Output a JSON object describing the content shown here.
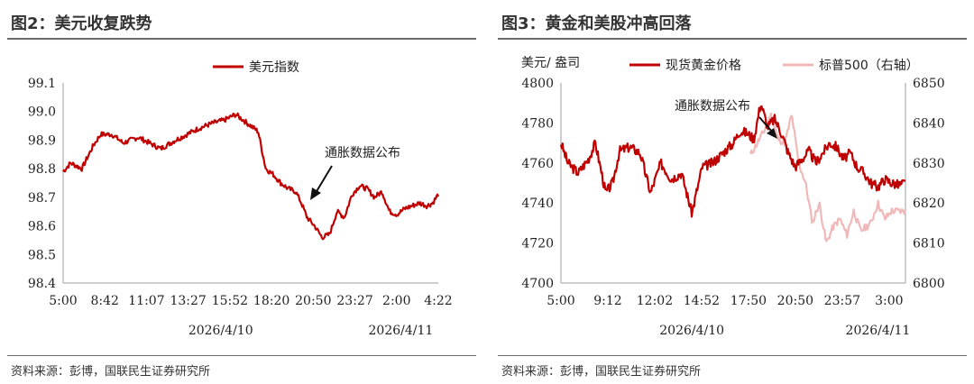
{
  "colors": {
    "primary_line": "#c00000",
    "secondary_line": "#f0b8b8",
    "axis": "#9e9e9e",
    "text": "#222222",
    "rule": "#6b6b6b"
  },
  "left": {
    "title": "图2：美元收复跌势",
    "source": "资料来源：彭博，国联民生证券研究所",
    "annotation": "通胀数据公布"
  },
  "right": {
    "title": "图3：黄金和美股冲高回落",
    "source": "资料来源：彭博，国联民生证券研究所",
    "annotation": "通胀数据公布",
    "y_unit": "美元/ 盎司"
  },
  "chart_data": [
    {
      "type": "line",
      "title": "图2：美元收复跌势",
      "ylim": [
        98.4,
        99.1
      ],
      "yticks": [
        "99.1",
        "99.0",
        "98.9",
        "98.8",
        "98.7",
        "98.6",
        "98.5",
        "98.4"
      ],
      "xticks": [
        "5:00",
        "8:42",
        "11:07",
        "13:27",
        "15:52",
        "18:20",
        "20:50",
        "23:27",
        "2:00",
        "4:22"
      ],
      "date_labels": [
        "2026/4/10",
        "2026/4/11"
      ],
      "legend": "top-center",
      "grid": false,
      "series": [
        {
          "name": "美元指数",
          "x": [
            0,
            0.02,
            0.05,
            0.08,
            0.1,
            0.13,
            0.16,
            0.2,
            0.23,
            0.26,
            0.3,
            0.33,
            0.36,
            0.4,
            0.43,
            0.46,
            0.5,
            0.52,
            0.54,
            0.56,
            0.58,
            0.6,
            0.62,
            0.635,
            0.65,
            0.67,
            0.69,
            0.71,
            0.73,
            0.75,
            0.77,
            0.79,
            0.81,
            0.83,
            0.85,
            0.87,
            0.89,
            0.91,
            0.93,
            0.95,
            0.97,
            0.985,
            1.0
          ],
          "values": [
            98.79,
            98.82,
            98.8,
            98.88,
            98.92,
            98.92,
            98.89,
            98.91,
            98.89,
            98.87,
            98.9,
            98.92,
            98.94,
            98.96,
            98.97,
            98.99,
            98.95,
            98.93,
            98.8,
            98.78,
            98.75,
            98.73,
            98.72,
            98.68,
            98.63,
            98.6,
            98.56,
            98.57,
            98.65,
            98.63,
            98.71,
            98.74,
            98.73,
            98.7,
            98.72,
            98.65,
            98.64,
            98.66,
            98.67,
            98.68,
            98.67,
            98.68,
            98.71
          ]
        }
      ]
    },
    {
      "type": "line",
      "title": "图3：黄金和美股冲高回落",
      "ylim": [
        4700,
        4800
      ],
      "ylim_right": [
        6800,
        6850
      ],
      "yticks": [
        "4800",
        "4780",
        "4760",
        "4740",
        "4720",
        "4700"
      ],
      "yticks_right": [
        "6850",
        "6840",
        "6830",
        "6820",
        "6810",
        "6800"
      ],
      "ylabel": "美元/ 盎司",
      "xticks": [
        "5:00",
        "9:12",
        "12:02",
        "14:52",
        "17:50",
        "20:50",
        "23:57",
        "3:00"
      ],
      "date_labels": [
        "2026/4/10",
        "2026/4/11"
      ],
      "legend": "top",
      "grid": false,
      "series": [
        {
          "name": "现货黄金价格",
          "axis": "left",
          "x": [
            0,
            0.02,
            0.05,
            0.08,
            0.1,
            0.13,
            0.15,
            0.17,
            0.2,
            0.23,
            0.26,
            0.29,
            0.32,
            0.35,
            0.38,
            0.41,
            0.44,
            0.47,
            0.5,
            0.52,
            0.54,
            0.56,
            0.58,
            0.6,
            0.62,
            0.64,
            0.66,
            0.68,
            0.7,
            0.72,
            0.74,
            0.76,
            0.78,
            0.8,
            0.82,
            0.84,
            0.86,
            0.88,
            0.9,
            0.92,
            0.94,
            0.96,
            0.98,
            1.0
          ],
          "values": [
            4770,
            4760,
            4755,
            4762,
            4770,
            4745,
            4750,
            4766,
            4768,
            4765,
            4745,
            4760,
            4752,
            4755,
            4735,
            4758,
            4760,
            4765,
            4770,
            4776,
            4775,
            4772,
            4790,
            4778,
            4782,
            4775,
            4765,
            4758,
            4762,
            4766,
            4760,
            4765,
            4770,
            4768,
            4762,
            4765,
            4758,
            4755,
            4750,
            4748,
            4752,
            4750,
            4749,
            4750
          ]
        },
        {
          "name": "标普500（右轴）",
          "axis": "right",
          "x": [
            0.55,
            0.57,
            0.59,
            0.61,
            0.63,
            0.65,
            0.67,
            0.69,
            0.71,
            0.73,
            0.75,
            0.77,
            0.79,
            0.81,
            0.83,
            0.85,
            0.87,
            0.9,
            0.92,
            0.94,
            0.96,
            0.98,
            1.0
          ],
          "values": [
            6832,
            6835,
            6838,
            6842,
            6836,
            6835,
            6842,
            6830,
            6825,
            6815,
            6820,
            6810,
            6814,
            6816,
            6812,
            6818,
            6813,
            6815,
            6820,
            6816,
            6818,
            6818,
            6818
          ]
        }
      ]
    }
  ]
}
